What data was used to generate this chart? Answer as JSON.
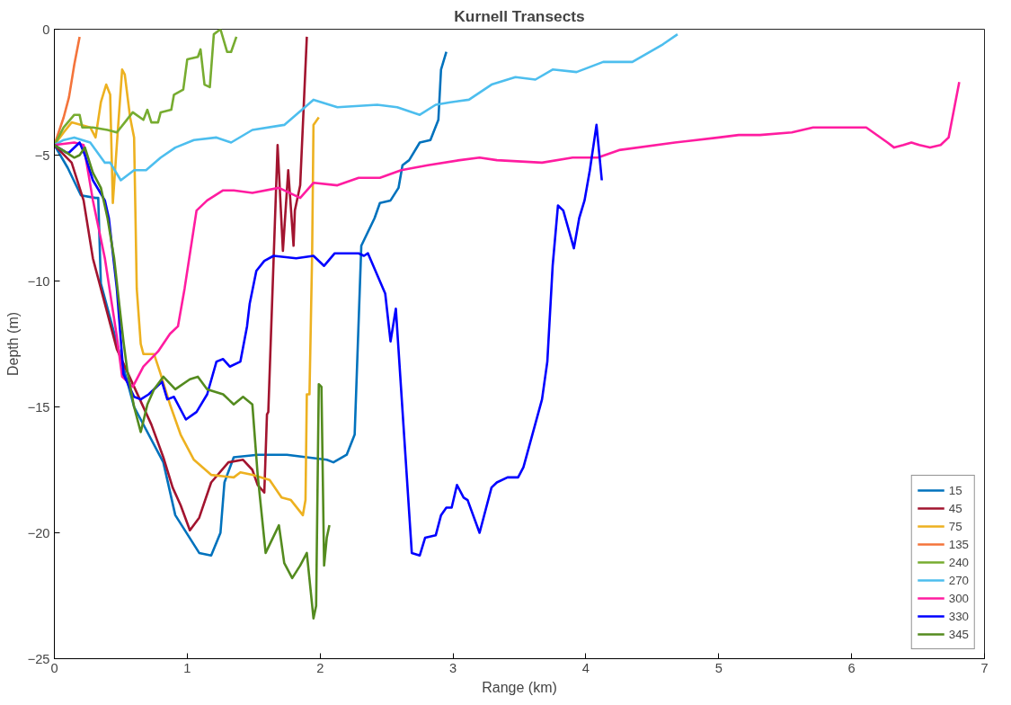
{
  "chart_data": {
    "type": "line",
    "title": "Kurnell Transects",
    "xlabel": "Range (km)",
    "ylabel": "Depth (m)",
    "xlim": [
      0,
      7
    ],
    "xticks": [
      0,
      1,
      2,
      3,
      4,
      5,
      6,
      7
    ],
    "ylim": [
      -25,
      0
    ],
    "yticks": [
      -25,
      -20,
      -15,
      -10,
      -5,
      0
    ],
    "grid": false,
    "legend": "bottom right",
    "line_style": "solid",
    "marker": "none",
    "series": [
      {
        "name": "15",
        "color": "#0072bd",
        "x": [
          0,
          0.1,
          0.2,
          0.31,
          0.33,
          0.35,
          0.6,
          0.82,
          0.91,
          1.09,
          1.18,
          1.25,
          1.28,
          1.35,
          1.53,
          1.75,
          2.05,
          2.1,
          2.2,
          2.26,
          2.31,
          2.41,
          2.45,
          2.53,
          2.59,
          2.62,
          2.67,
          2.75,
          2.83,
          2.89,
          2.91,
          2.95
        ],
        "values": [
          -4.6,
          -5.5,
          -6.6,
          -6.7,
          -6.7,
          -10.1,
          -15,
          -17.2,
          -19.3,
          -20.8,
          -20.9,
          -20,
          -18,
          -17,
          -16.9,
          -16.9,
          -17.1,
          -17.2,
          -16.9,
          -16.1,
          -8.6,
          -7.5,
          -6.9,
          -6.8,
          -6.3,
          -5.4,
          -5.2,
          -4.5,
          -4.4,
          -3.6,
          -1.6,
          -0.9
        ]
      },
      {
        "name": "45",
        "color": "#a2142f",
        "x": [
          0,
          0.13,
          0.22,
          0.29,
          0.38,
          0.47,
          0.6,
          0.73,
          0.82,
          0.89,
          0.95,
          1.02,
          1.09,
          1.18,
          1.31,
          1.42,
          1.49,
          1.53,
          1.58,
          1.6,
          1.61,
          1.68,
          1.72,
          1.76,
          1.8,
          1.81,
          1.85,
          1.9
        ],
        "values": [
          -4.6,
          -5.3,
          -6.8,
          -9.1,
          -10.9,
          -12.7,
          -14.2,
          -15.7,
          -17,
          -18.2,
          -18.9,
          -19.9,
          -19.4,
          -18,
          -17.2,
          -17.1,
          -17.5,
          -18.1,
          -18.4,
          -15.3,
          -15.2,
          -4.6,
          -8.8,
          -5.6,
          -8.6,
          -7.2,
          -6.2,
          -0.3
        ]
      },
      {
        "name": "75",
        "color": "#edb120",
        "x": [
          0,
          0.07,
          0.13,
          0.27,
          0.31,
          0.35,
          0.39,
          0.42,
          0.44,
          0.47,
          0.51,
          0.53,
          0.57,
          0.6,
          0.62,
          0.65,
          0.67,
          0.75,
          0.8,
          0.87,
          0.95,
          1.05,
          1.18,
          1.35,
          1.4,
          1.49,
          1.62,
          1.71,
          1.78,
          1.87,
          1.89,
          1.9,
          1.92,
          1.94,
          1.95,
          1.99
        ],
        "values": [
          -4.6,
          -4.1,
          -3.7,
          -3.9,
          -4.3,
          -2.9,
          -2.2,
          -2.6,
          -6.9,
          -4.6,
          -1.6,
          -1.8,
          -3.5,
          -4.3,
          -10.3,
          -12.5,
          -12.9,
          -12.9,
          -13.7,
          -14.9,
          -16.1,
          -17.1,
          -17.7,
          -17.8,
          -17.6,
          -17.7,
          -17.9,
          -18.6,
          -18.7,
          -19.3,
          -18.7,
          -14.5,
          -14.5,
          -8.9,
          -3.8,
          -3.5
        ]
      },
      {
        "name": "135",
        "color": "#f4743b",
        "x": [
          0,
          0.07,
          0.11,
          0.15,
          0.19
        ],
        "values": [
          -4.6,
          -3.5,
          -2.7,
          -1.4,
          -0.3
        ]
      },
      {
        "name": "240",
        "color": "#77ac30",
        "x": [
          0,
          0.07,
          0.15,
          0.19,
          0.21,
          0.29,
          0.4,
          0.47,
          0.53,
          0.59,
          0.67,
          0.7,
          0.73,
          0.78,
          0.8,
          0.88,
          0.9,
          0.97,
          1.0,
          1.08,
          1.1,
          1.13,
          1.17,
          1.2,
          1.25,
          1.3,
          1.33,
          1.37
        ],
        "values": [
          -4.6,
          -3.9,
          -3.4,
          -3.4,
          -3.9,
          -3.9,
          -4,
          -4.1,
          -3.7,
          -3.3,
          -3.6,
          -3.2,
          -3.7,
          -3.7,
          -3.3,
          -3.2,
          -2.6,
          -2.4,
          -1.2,
          -1.1,
          -0.8,
          -2.2,
          -2.3,
          -0.2,
          0,
          -0.9,
          -0.9,
          -0.3
        ]
      },
      {
        "name": "270",
        "color": "#4dbeee",
        "x": [
          0,
          0.07,
          0.15,
          0.27,
          0.38,
          0.42,
          0.5,
          0.6,
          0.69,
          0.8,
          0.91,
          1.05,
          1.22,
          1.33,
          1.49,
          1.73,
          1.95,
          2.13,
          2.43,
          2.58,
          2.75,
          2.87,
          2.98,
          3.12,
          3.29,
          3.47,
          3.62,
          3.75,
          3.93,
          4.13,
          4.35,
          4.58,
          4.69
        ],
        "values": [
          -4.6,
          -4.4,
          -4.3,
          -4.5,
          -5.3,
          -5.3,
          -6,
          -5.6,
          -5.6,
          -5.1,
          -4.7,
          -4.4,
          -4.3,
          -4.5,
          -4,
          -3.8,
          -2.8,
          -3.1,
          -3,
          -3.1,
          -3.4,
          -3,
          -2.9,
          -2.8,
          -2.2,
          -1.9,
          -2,
          -1.6,
          -1.7,
          -1.3,
          -1.3,
          -0.6,
          -0.2
        ]
      },
      {
        "name": "300",
        "color": "#ff1ca0",
        "x": [
          0,
          0.15,
          0.22,
          0.29,
          0.38,
          0.47,
          0.51,
          0.59,
          0.67,
          0.78,
          0.87,
          0.93,
          0.98,
          1.07,
          1.15,
          1.27,
          1.35,
          1.49,
          1.69,
          1.85,
          1.95,
          2.13,
          2.29,
          2.45,
          2.61,
          2.81,
          3.05,
          3.2,
          3.33,
          3.67,
          3.9,
          4.09,
          4.25,
          4.67,
          5.0,
          5.15,
          5.31,
          5.55,
          5.71,
          5.91,
          6.02,
          6.11,
          6.27,
          6.32,
          6.39,
          6.45,
          6.51,
          6.59,
          6.67,
          6.73,
          6.81
        ],
        "values": [
          -4.6,
          -4.5,
          -4.6,
          -6.8,
          -9.1,
          -12.2,
          -13.8,
          -14.2,
          -13.4,
          -12.8,
          -12.1,
          -11.8,
          -10.3,
          -7.2,
          -6.8,
          -6.4,
          -6.4,
          -6.5,
          -6.3,
          -6.7,
          -6.1,
          -6.2,
          -5.9,
          -5.9,
          -5.6,
          -5.4,
          -5.2,
          -5.1,
          -5.2,
          -5.3,
          -5.1,
          -5.1,
          -4.8,
          -4.5,
          -4.3,
          -4.2,
          -4.2,
          -4.1,
          -3.9,
          -3.9,
          -3.9,
          -3.9,
          -4.5,
          -4.7,
          -4.6,
          -4.5,
          -4.6,
          -4.7,
          -4.6,
          -4.3,
          -2.1
        ]
      },
      {
        "name": "330",
        "color": "#0000ff",
        "x": [
          0,
          0.09,
          0.11,
          0.19,
          0.23,
          0.29,
          0.38,
          0.41,
          0.47,
          0.52,
          0.6,
          0.65,
          0.71,
          0.81,
          0.85,
          0.9,
          0.99,
          1.07,
          1.15,
          1.22,
          1.27,
          1.32,
          1.4,
          1.45,
          1.47,
          1.52,
          1.58,
          1.65,
          1.82,
          1.95,
          2.03,
          2.11,
          2.29,
          2.33,
          2.36,
          2.49,
          2.53,
          2.57,
          2.69,
          2.75,
          2.79,
          2.87,
          2.91,
          2.95,
          2.99,
          3.03,
          3.08,
          3.11,
          3.2,
          3.29,
          3.33,
          3.41,
          3.49,
          3.53,
          3.67,
          3.71,
          3.75,
          3.79,
          3.83,
          3.91,
          3.95,
          3.99,
          4.03,
          4.08,
          4.12
        ],
        "values": [
          -4.6,
          -4.9,
          -4.9,
          -4.5,
          -5,
          -6,
          -6.8,
          -7.5,
          -10.3,
          -13.7,
          -14.6,
          -14.7,
          -14.5,
          -14,
          -14.7,
          -14.6,
          -15.5,
          -15.2,
          -14.5,
          -13.2,
          -13.1,
          -13.4,
          -13.2,
          -11.8,
          -10.9,
          -9.6,
          -9.2,
          -9,
          -9.1,
          -9,
          -9.4,
          -8.9,
          -8.9,
          -9,
          -8.9,
          -10.5,
          -12.4,
          -11.1,
          -20.8,
          -20.9,
          -20.2,
          -20.1,
          -19.3,
          -19,
          -19,
          -18.1,
          -18.6,
          -18.7,
          -20,
          -18.2,
          -18,
          -17.8,
          -17.8,
          -17.4,
          -14.7,
          -13.2,
          -9.4,
          -7,
          -7.2,
          -8.7,
          -7.5,
          -6.8,
          -5.6,
          -3.8,
          -6
        ]
      },
      {
        "name": "345",
        "color": "#548b1f",
        "x": [
          0,
          0.09,
          0.15,
          0.19,
          0.23,
          0.29,
          0.35,
          0.4,
          0.45,
          0.49,
          0.52,
          0.55,
          0.6,
          0.65,
          0.7,
          0.75,
          0.82,
          0.91,
          1.02,
          1.08,
          1.15,
          1.27,
          1.35,
          1.42,
          1.49,
          1.53,
          1.59,
          1.69,
          1.73,
          1.79,
          1.85,
          1.9,
          1.95,
          1.97,
          1.99,
          2.01,
          2.03,
          2.05,
          2.07
        ],
        "values": [
          -4.6,
          -4.9,
          -5.1,
          -5,
          -4.7,
          -5.7,
          -6.3,
          -7.5,
          -9.1,
          -11,
          -12.4,
          -13.6,
          -15,
          -16,
          -14.9,
          -14.3,
          -13.8,
          -14.3,
          -13.9,
          -13.8,
          -14.3,
          -14.5,
          -14.9,
          -14.6,
          -14.9,
          -17.7,
          -20.8,
          -19.7,
          -21.2,
          -21.8,
          -21.3,
          -20.8,
          -23.4,
          -22.9,
          -14.1,
          -14.2,
          -21.3,
          -20.2,
          -19.7
        ]
      }
    ]
  }
}
